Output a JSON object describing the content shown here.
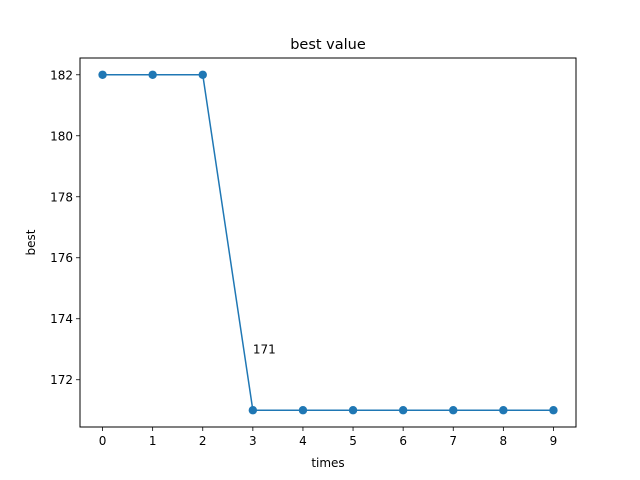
{
  "chart_data": {
    "type": "line",
    "title": "best value",
    "xlabel": "times",
    "ylabel": "best",
    "x": [
      0,
      1,
      2,
      3,
      4,
      5,
      6,
      7,
      8,
      9
    ],
    "series": [
      {
        "values": [
          182,
          182,
          182,
          171,
          171,
          171,
          171,
          171,
          171,
          171
        ],
        "color": "#1f77b4"
      }
    ],
    "xlim": [
      -0.45,
      9.45
    ],
    "ylim": [
      170.45,
      182.55
    ],
    "xticks": [
      0,
      1,
      2,
      3,
      4,
      5,
      6,
      7,
      8,
      9
    ],
    "yticks": [
      172,
      174,
      176,
      178,
      180,
      182
    ],
    "annotations": [
      {
        "text": "171",
        "x": 3,
        "y": 173
      }
    ],
    "grid": false,
    "marker": "circle"
  }
}
